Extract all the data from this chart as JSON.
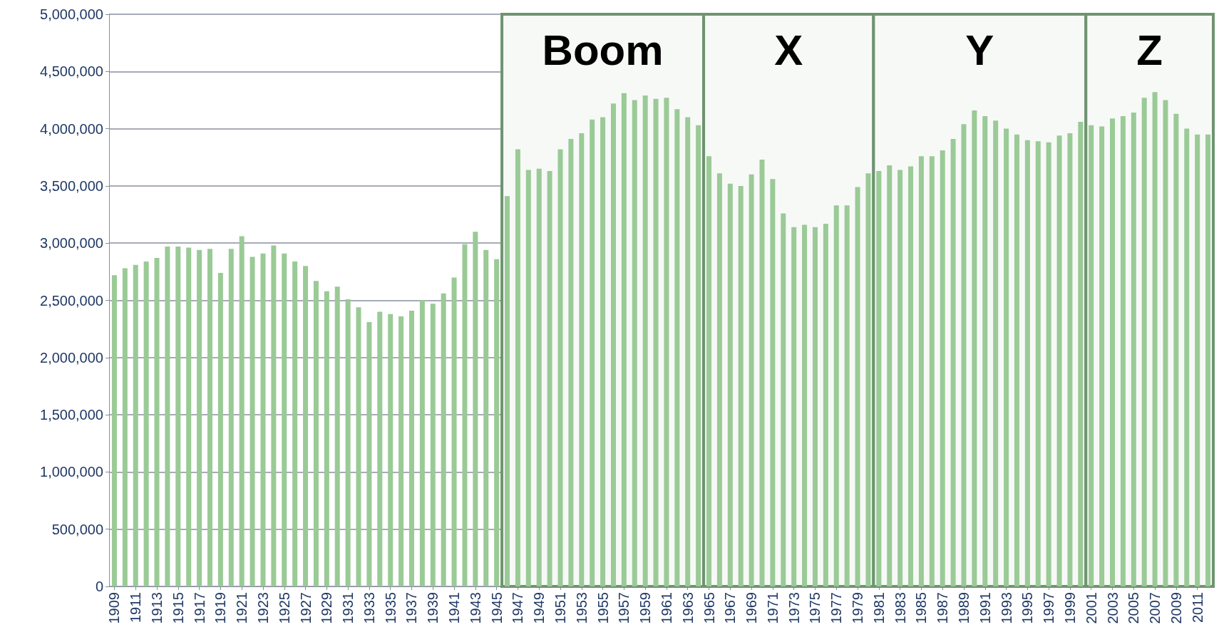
{
  "chart_data": {
    "type": "bar",
    "x": [
      1909,
      1910,
      1911,
      1912,
      1913,
      1914,
      1915,
      1916,
      1917,
      1918,
      1919,
      1920,
      1921,
      1922,
      1923,
      1924,
      1925,
      1926,
      1927,
      1928,
      1929,
      1930,
      1931,
      1932,
      1933,
      1934,
      1935,
      1936,
      1937,
      1938,
      1939,
      1940,
      1941,
      1942,
      1943,
      1944,
      1945,
      1946,
      1947,
      1948,
      1949,
      1950,
      1951,
      1952,
      1953,
      1954,
      1955,
      1956,
      1957,
      1958,
      1959,
      1960,
      1961,
      1962,
      1963,
      1964,
      1965,
      1966,
      1967,
      1968,
      1969,
      1970,
      1971,
      1972,
      1973,
      1974,
      1975,
      1976,
      1977,
      1978,
      1979,
      1980,
      1981,
      1982,
      1983,
      1984,
      1985,
      1986,
      1987,
      1988,
      1989,
      1990,
      1991,
      1992,
      1993,
      1994,
      1995,
      1996,
      1997,
      1998,
      1999,
      2000,
      2001,
      2002,
      2003,
      2004,
      2005,
      2006,
      2007,
      2008,
      2009,
      2010,
      2011,
      2012
    ],
    "values": [
      2720000,
      2780000,
      2810000,
      2840000,
      2870000,
      2970000,
      2970000,
      2960000,
      2940000,
      2950000,
      2740000,
      2950000,
      3060000,
      2880000,
      2910000,
      2980000,
      2910000,
      2840000,
      2800000,
      2670000,
      2580000,
      2620000,
      2510000,
      2440000,
      2310000,
      2400000,
      2380000,
      2360000,
      2410000,
      2500000,
      2470000,
      2560000,
      2700000,
      2990000,
      3100000,
      2940000,
      2860000,
      3410000,
      3820000,
      3640000,
      3650000,
      3630000,
      3820000,
      3910000,
      3960000,
      4080000,
      4100000,
      4220000,
      4310000,
      4250000,
      4290000,
      4260000,
      4270000,
      4170000,
      4100000,
      4030000,
      3760000,
      3610000,
      3520000,
      3500000,
      3600000,
      3730000,
      3560000,
      3260000,
      3140000,
      3160000,
      3140000,
      3170000,
      3330000,
      3330000,
      3490000,
      3610000,
      3630000,
      3680000,
      3640000,
      3670000,
      3760000,
      3760000,
      3810000,
      3910000,
      4040000,
      4160000,
      4110000,
      4070000,
      4000000,
      3950000,
      3900000,
      3890000,
      3880000,
      3940000,
      3960000,
      4060000,
      4030000,
      4020000,
      4090000,
      4110000,
      4140000,
      4270000,
      4320000,
      4250000,
      4130000,
      4000000,
      3950000,
      3950000
    ],
    "color": "#9aca96",
    "xlim": [
      1908.5,
      2012.5
    ],
    "xticks": [
      1909,
      1911,
      1913,
      1915,
      1917,
      1919,
      1921,
      1923,
      1925,
      1927,
      1929,
      1931,
      1933,
      1935,
      1937,
      1939,
      1941,
      1943,
      1945,
      1947,
      1949,
      1951,
      1953,
      1955,
      1957,
      1959,
      1961,
      1963,
      1965,
      1967,
      1969,
      1971,
      1973,
      1975,
      1977,
      1979,
      1981,
      1983,
      1985,
      1987,
      1989,
      1991,
      1993,
      1995,
      1997,
      1999,
      2001,
      2003,
      2005,
      2007,
      2009,
      2011
    ],
    "ylim": [
      0,
      5000000
    ],
    "yticks": [
      0,
      {
        "value": 500000,
        "label": "500,000"
      },
      {
        "value": 1000000,
        "label": "1,000,000"
      },
      {
        "value": 1500000,
        "label": "1,500,000"
      },
      {
        "value": 2000000,
        "label": "2,000,000"
      },
      {
        "value": 2500000,
        "label": "2,500,000"
      },
      {
        "value": 3000000,
        "label": "3,000,000"
      },
      {
        "value": 3500000,
        "label": "3,500,000"
      },
      {
        "value": 4000000,
        "label": "4,000,000"
      },
      {
        "value": 4500000,
        "label": "4,500,000"
      },
      {
        "value": 5000000,
        "label": "5,000,000"
      }
    ],
    "grid": "y",
    "bands": [
      {
        "axis": "x",
        "from": 1945.5,
        "to": 1964.5,
        "label": "Boom",
        "color": "#f7f9f7"
      },
      {
        "axis": "x",
        "from": 1964.5,
        "to": 1980.5,
        "label": "X",
        "color": "#f7f9f7"
      },
      {
        "axis": "x",
        "from": 1980.5,
        "to": 2000.5,
        "label": "Y",
        "color": "#f7f9f7"
      },
      {
        "axis": "x",
        "from": 2000.5,
        "to": 2012.5,
        "label": "Z",
        "color": "#f7f9f7"
      }
    ]
  }
}
